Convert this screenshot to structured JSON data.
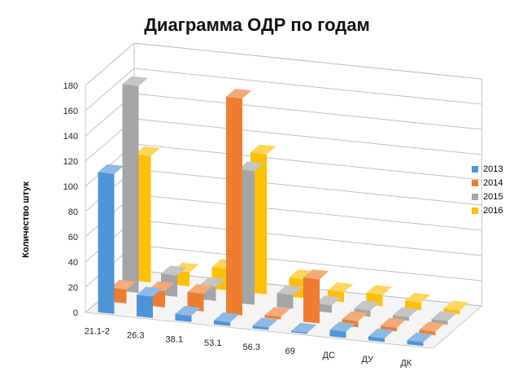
{
  "chart_data": {
    "type": "bar",
    "title": "Диаграмма ОДР по годам",
    "ylabel": "Количество штук",
    "xlabel": "",
    "ylim": [
      0,
      180
    ],
    "yticks": [
      "0",
      "20",
      "40",
      "60",
      "80",
      "100",
      "120",
      "140",
      "160",
      "180"
    ],
    "categories": [
      "21.1-2",
      "26.3",
      "38.1",
      "53.1",
      "56.3",
      "69",
      "ДС",
      "ДУ",
      "ДК"
    ],
    "grid": true,
    "legend_position": "right",
    "series": [
      {
        "name": "2013",
        "color": "#4f94d6",
        "values": [
          111,
          17,
          5,
          3,
          2,
          1,
          5,
          3,
          3
        ]
      },
      {
        "name": "2014",
        "color": "#ed7d31",
        "values": [
          11,
          13,
          14,
          172,
          2,
          35,
          5,
          3,
          3
        ]
      },
      {
        "name": "2015",
        "color": "#a5a5a5",
        "values": [
          164,
          17,
          11,
          106,
          11,
          6,
          5,
          3,
          3
        ]
      },
      {
        "name": "2016",
        "color": "#ffc000",
        "values": [
          100,
          11,
          17,
          111,
          15,
          8,
          9,
          6,
          3
        ]
      }
    ]
  }
}
